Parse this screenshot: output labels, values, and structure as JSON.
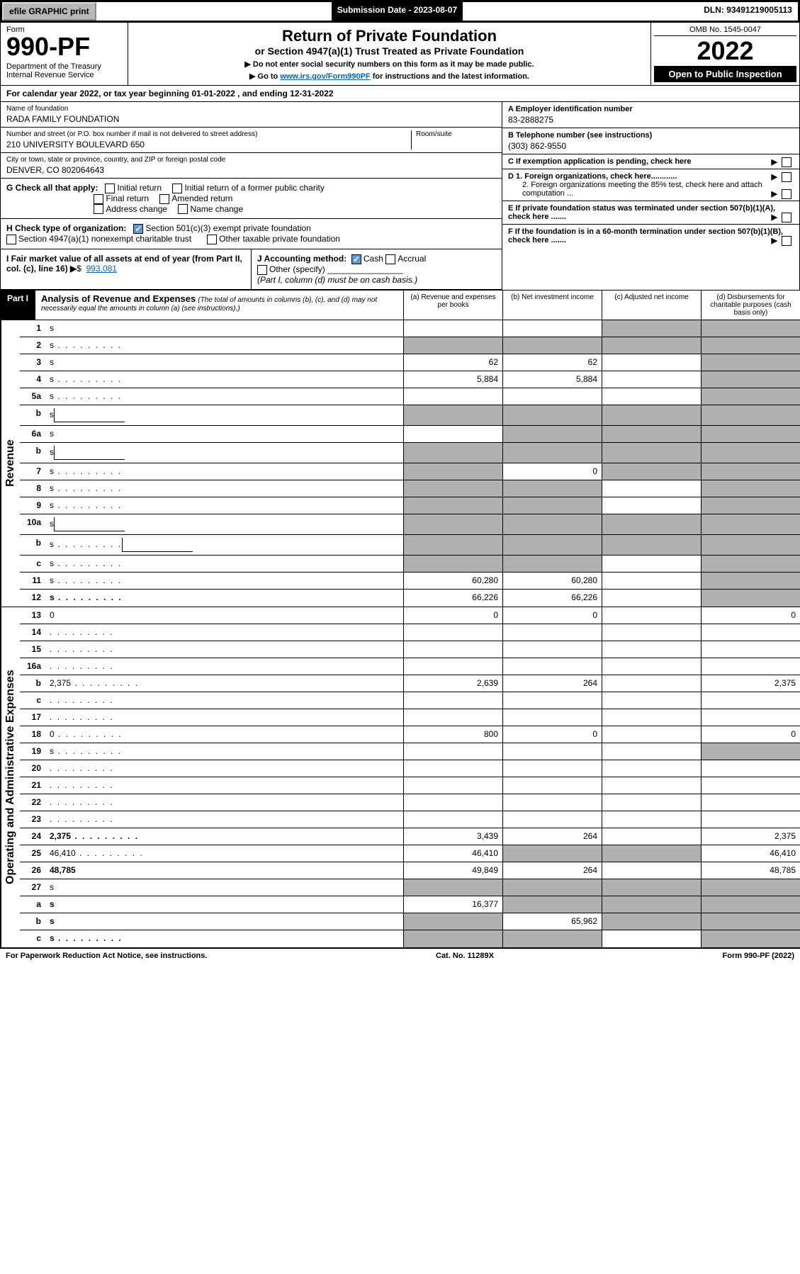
{
  "top": {
    "efile": "efile GRAPHIC print",
    "submission": "Submission Date - 2023-08-07",
    "dln": "DLN: 93491219005113"
  },
  "header": {
    "form_label": "Form",
    "form_num": "990-PF",
    "dept": "Department of the Treasury\nInternal Revenue Service",
    "title": "Return of Private Foundation",
    "subtitle": "or Section 4947(a)(1) Trust Treated as Private Foundation",
    "note1": "▶ Do not enter social security numbers on this form as it may be made public.",
    "note2_pre": "▶ Go to ",
    "note2_link": "www.irs.gov/Form990PF",
    "note2_post": " for instructions and the latest information.",
    "omb": "OMB No. 1545-0047",
    "year": "2022",
    "open": "Open to Public Inspection"
  },
  "cal": "For calendar year 2022, or tax year beginning 01-01-2022                         , and ending 12-31-2022",
  "info": {
    "name_lbl": "Name of foundation",
    "name": "RADA FAMILY FOUNDATION",
    "addr_lbl": "Number and street (or P.O. box number if mail is not delivered to street address)",
    "addr": "210 UNIVERSITY BOULEVARD 650",
    "room_lbl": "Room/suite",
    "city_lbl": "City or town, state or province, country, and ZIP or foreign postal code",
    "city": "DENVER, CO  802064643",
    "a_lbl": "A Employer identification number",
    "a_val": "83-2888275",
    "b_lbl": "B Telephone number (see instructions)",
    "b_val": "(303) 862-9550",
    "c_lbl": "C If exemption application is pending, check here",
    "d1": "D 1. Foreign organizations, check here............",
    "d2": "2. Foreign organizations meeting the 85% test, check here and attach computation ...",
    "e_lbl": "E  If private foundation status was terminated under section 507(b)(1)(A), check here .......",
    "f_lbl": "F  If the foundation is in a 60-month termination under section 507(b)(1)(B), check here .......",
    "g_lbl": "G Check all that apply:",
    "g_opts": [
      "Initial return",
      "Initial return of a former public charity",
      "Final return",
      "Amended return",
      "Address change",
      "Name change"
    ],
    "h_lbl": "H Check type of organization:",
    "h1": "Section 501(c)(3) exempt private foundation",
    "h2": "Section 4947(a)(1) nonexempt charitable trust",
    "h3": "Other taxable private foundation",
    "i_lbl": "I Fair market value of all assets at end of year (from Part II, col. (c), line 16)",
    "i_val": "993,081",
    "j_lbl": "J Accounting method:",
    "j_cash": "Cash",
    "j_accrual": "Accrual",
    "j_other": "Other (specify)",
    "j_note": "(Part I, column (d) must be on cash basis.)"
  },
  "part1": {
    "hdr": "Part I",
    "ttl": "Analysis of Revenue and Expenses",
    "sub": "(The total of amounts in columns (b), (c), and (d) may not necessarily equal the amounts in column (a) (see instructions).)",
    "cols": [
      "(a)   Revenue and expenses per books",
      "(b)   Net investment income",
      "(c)   Adjusted net income",
      "(d)  Disbursements for charitable purposes (cash basis only)"
    ]
  },
  "sections": {
    "rev": "Revenue",
    "exp": "Operating and Administrative Expenses"
  },
  "rows": [
    {
      "n": "1",
      "d": "s",
      "a": "",
      "b": "",
      "c": "s"
    },
    {
      "n": "2",
      "d": "s",
      "a": "s",
      "b": "s",
      "c": "s",
      "dots": true
    },
    {
      "n": "3",
      "d": "s",
      "a": "62",
      "b": "62",
      "c": ""
    },
    {
      "n": "4",
      "d": "s",
      "a": "5,884",
      "b": "5,884",
      "c": "",
      "dots": true
    },
    {
      "n": "5a",
      "d": "s",
      "a": "",
      "b": "",
      "c": "",
      "dots": true
    },
    {
      "n": "b",
      "d": "s",
      "a": "s",
      "b": "s",
      "c": "s",
      "half": true
    },
    {
      "n": "6a",
      "d": "s",
      "a": "",
      "b": "s",
      "c": "s"
    },
    {
      "n": "b",
      "d": "s",
      "a": "s",
      "b": "s",
      "c": "s",
      "half": true
    },
    {
      "n": "7",
      "d": "s",
      "a": "s",
      "b": "0",
      "c": "s",
      "dots": true
    },
    {
      "n": "8",
      "d": "s",
      "a": "s",
      "b": "s",
      "c": "",
      "dots": true
    },
    {
      "n": "9",
      "d": "s",
      "a": "s",
      "b": "s",
      "c": "",
      "dots": true
    },
    {
      "n": "10a",
      "d": "s",
      "a": "s",
      "b": "s",
      "c": "s",
      "half": true
    },
    {
      "n": "b",
      "d": "s",
      "a": "s",
      "b": "s",
      "c": "s",
      "half": true,
      "dots": true
    },
    {
      "n": "c",
      "d": "s",
      "a": "s",
      "b": "s",
      "c": "",
      "dots": true
    },
    {
      "n": "11",
      "d": "s",
      "a": "60,280",
      "b": "60,280",
      "c": "",
      "dots": true
    },
    {
      "n": "12",
      "d": "s",
      "a": "66,226",
      "b": "66,226",
      "c": "",
      "bold": true,
      "dots": true
    }
  ],
  "exp_rows": [
    {
      "n": "13",
      "d": "0",
      "a": "0",
      "b": "0",
      "c": ""
    },
    {
      "n": "14",
      "d": "",
      "a": "",
      "b": "",
      "c": "",
      "dots": true
    },
    {
      "n": "15",
      "d": "",
      "a": "",
      "b": "",
      "c": "",
      "dots": true
    },
    {
      "n": "16a",
      "d": "",
      "a": "",
      "b": "",
      "c": "",
      "dots": true
    },
    {
      "n": "b",
      "d": "2,375",
      "a": "2,639",
      "b": "264",
      "c": "",
      "dots": true
    },
    {
      "n": "c",
      "d": "",
      "a": "",
      "b": "",
      "c": "",
      "dots": true
    },
    {
      "n": "17",
      "d": "",
      "a": "",
      "b": "",
      "c": "",
      "dots": true
    },
    {
      "n": "18",
      "d": "0",
      "a": "800",
      "b": "0",
      "c": "",
      "dots": true
    },
    {
      "n": "19",
      "d": "s",
      "a": "",
      "b": "",
      "c": "",
      "dots": true
    },
    {
      "n": "20",
      "d": "",
      "a": "",
      "b": "",
      "c": "",
      "dots": true
    },
    {
      "n": "21",
      "d": "",
      "a": "",
      "b": "",
      "c": "",
      "dots": true
    },
    {
      "n": "22",
      "d": "",
      "a": "",
      "b": "",
      "c": "",
      "dots": true
    },
    {
      "n": "23",
      "d": "",
      "a": "",
      "b": "",
      "c": "",
      "dots": true
    },
    {
      "n": "24",
      "d": "2,375",
      "a": "3,439",
      "b": "264",
      "c": "",
      "bold": true,
      "dots": true
    },
    {
      "n": "25",
      "d": "46,410",
      "a": "46,410",
      "b": "s",
      "c": "s",
      "dots": true
    },
    {
      "n": "26",
      "d": "48,785",
      "a": "49,849",
      "b": "264",
      "c": "",
      "bold": true
    },
    {
      "n": "27",
      "d": "s",
      "a": "s",
      "b": "s",
      "c": "s"
    },
    {
      "n": "a",
      "d": "s",
      "a": "16,377",
      "b": "s",
      "c": "s",
      "bold": true
    },
    {
      "n": "b",
      "d": "s",
      "a": "s",
      "b": "65,962",
      "c": "s",
      "bold": true
    },
    {
      "n": "c",
      "d": "s",
      "a": "s",
      "b": "s",
      "c": "",
      "bold": true,
      "dots": true
    }
  ],
  "footer": {
    "left": "For Paperwork Reduction Act Notice, see instructions.",
    "mid": "Cat. No. 11289X",
    "right": "Form 990-PF (2022)"
  }
}
